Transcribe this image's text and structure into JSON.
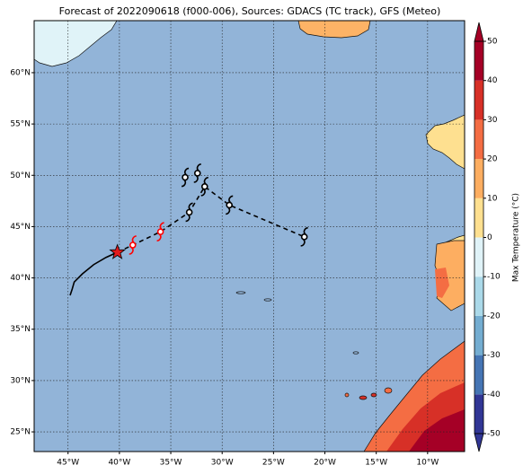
{
  "chart_data": {
    "type": "map",
    "title": "Forecast of 2022090618 (f000-006), Sources: GDACS (TC track), GFS (Meteo)",
    "xlim": [
      -48.3,
      -6.4
    ],
    "ylim": [
      23.08,
      65.07
    ],
    "xticks": [
      {
        "value": -45,
        "label": "45°W"
      },
      {
        "value": -40,
        "label": "40°W"
      },
      {
        "value": -35,
        "label": "35°W"
      },
      {
        "value": -30,
        "label": "30°W"
      },
      {
        "value": -25,
        "label": "25°W"
      },
      {
        "value": -20,
        "label": "20°W"
      },
      {
        "value": -15,
        "label": "15°W"
      },
      {
        "value": -10,
        "label": "10°W"
      }
    ],
    "yticks": [
      {
        "value": 25,
        "label": "25°N"
      },
      {
        "value": 30,
        "label": "30°N"
      },
      {
        "value": 35,
        "label": "35°N"
      },
      {
        "value": 40,
        "label": "40°N"
      },
      {
        "value": 45,
        "label": "45°N"
      },
      {
        "value": 50,
        "label": "50°N"
      },
      {
        "value": 55,
        "label": "55°N"
      },
      {
        "value": 60,
        "label": "60°N"
      }
    ],
    "grid": true,
    "past_track": {
      "color": "#000000",
      "x": [
        -44.8,
        -44.6,
        -44.4,
        -43.6,
        -42.5,
        -41.3,
        -40.2
      ],
      "y": [
        38.3,
        38.9,
        39.6,
        40.4,
        41.3,
        42.0,
        42.5
      ]
    },
    "current_position": {
      "color": "#e31a1c",
      "x": -40.2,
      "y": 42.5
    },
    "forecast_track": {
      "color": "#000000",
      "x": [
        -40.2,
        -38.7,
        -36.0,
        -33.2,
        -31.7,
        -29.3,
        -22.0
      ],
      "y": [
        42.5,
        43.2,
        44.5,
        46.4,
        48.9,
        47.1,
        44.0
      ]
    },
    "forecast_points": {
      "x": [
        -38.7,
        -36.0,
        -33.2,
        -33.6,
        -32.4,
        -31.7,
        -29.3,
        -22.0
      ],
      "y": [
        43.2,
        44.5,
        46.4,
        49.8,
        50.2,
        48.9,
        47.1,
        44.0
      ],
      "colors": [
        "#ff0000",
        "#ff0000",
        "#000000",
        "#000000",
        "#000000",
        "#000000",
        "#000000",
        "#000000"
      ]
    },
    "colorbar": {
      "label": "Max Temperature (°C)",
      "lim": [
        -50,
        50
      ],
      "ticks": [
        50,
        40,
        30,
        20,
        10,
        0,
        -10,
        -20,
        -30,
        -40,
        -50
      ],
      "colors": [
        "#313695",
        "#4575b4",
        "#74add1",
        "#abd9e9",
        "#e0f3f8",
        "#fee090",
        "#fdae61",
        "#f46d43",
        "#d73027",
        "#a50026"
      ]
    }
  }
}
